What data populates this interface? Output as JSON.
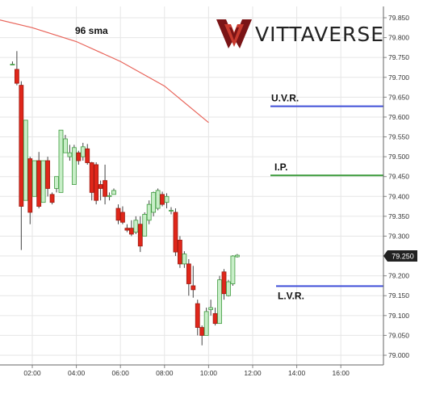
{
  "brand": {
    "name": "VITTAVERSE"
  },
  "colors": {
    "bull": "#c8eec8",
    "bullBorder": "#3f9b3f",
    "bear": "#e0261a",
    "bearBorder": "#9b1b12",
    "sma": "#e8645a",
    "uvr": "#3f4ed8",
    "ip": "#3a9a3a",
    "lvr": "#3f4ed8",
    "grid": "#e6e6e6",
    "logoDark": "#7a1416",
    "logoRed": "#c83a2e"
  },
  "chart_data": {
    "type": "candlestick",
    "ylim": [
      79.0,
      79.85
    ],
    "yticks": [
      "79.850",
      "79.800",
      "79.750",
      "79.700",
      "79.650",
      "79.600",
      "79.550",
      "79.500",
      "79.450",
      "79.400",
      "79.350",
      "79.300",
      "79.250",
      "79.200",
      "79.150",
      "79.100",
      "79.050",
      "79.000"
    ],
    "xticks": [
      "02:00",
      "04:00",
      "06:00",
      "08:00",
      "10:00",
      "12:00",
      "14:00",
      "16:00"
    ],
    "current_price": "79.250",
    "annotations": [
      {
        "label": "96 sma"
      },
      {
        "label": "U.V.R.",
        "y": 79.627
      },
      {
        "label": "I.P.",
        "y": 79.453
      },
      {
        "label": "L.V.R.",
        "y": 79.174
      }
    ],
    "sma": [
      [
        0.5,
        79.845
      ],
      [
        2,
        79.825
      ],
      [
        4,
        79.79
      ],
      [
        6,
        79.74
      ],
      [
        8,
        79.678
      ],
      [
        10,
        79.586
      ]
    ],
    "candles": [
      [
        1.1,
        79.732,
        79.74,
        79.731,
        79.733
      ],
      [
        1.3,
        79.72,
        79.766,
        79.68,
        79.685
      ],
      [
        1.5,
        79.68,
        79.69,
        79.265,
        79.375
      ],
      [
        1.7,
        79.39,
        79.592,
        79.39,
        79.592
      ],
      [
        1.9,
        79.495,
        79.5,
        79.33,
        79.36
      ],
      [
        2.1,
        79.4,
        79.49,
        79.4,
        79.49
      ],
      [
        2.3,
        79.49,
        79.512,
        79.37,
        79.375
      ],
      [
        2.5,
        79.385,
        79.49,
        79.385,
        79.49
      ],
      [
        2.7,
        79.49,
        79.5,
        79.4,
        79.42
      ],
      [
        2.9,
        79.405,
        79.41,
        79.38,
        79.385
      ],
      [
        3.1,
        79.42,
        79.45,
        79.41,
        79.45
      ],
      [
        3.3,
        79.41,
        79.567,
        79.41,
        79.567
      ],
      [
        3.5,
        79.51,
        79.555,
        79.51,
        79.545
      ],
      [
        3.7,
        79.5,
        79.53,
        79.49,
        79.51
      ],
      [
        3.9,
        79.43,
        79.53,
        79.43,
        79.523
      ],
      [
        4.1,
        79.51,
        79.515,
        79.48,
        79.49
      ],
      [
        4.3,
        79.5,
        79.535,
        79.49,
        79.525
      ],
      [
        4.5,
        79.52,
        79.532,
        79.48,
        79.485
      ],
      [
        4.7,
        79.485,
        79.487,
        79.39,
        79.41
      ],
      [
        4.9,
        79.48,
        79.486,
        79.38,
        79.39
      ],
      [
        5.1,
        79.43,
        79.44,
        79.39,
        79.42
      ],
      [
        5.3,
        79.44,
        79.48,
        79.38,
        79.4
      ],
      [
        5.5,
        79.4,
        79.41,
        79.39,
        79.402
      ],
      [
        5.7,
        79.405,
        79.42,
        79.405,
        79.415
      ],
      [
        5.9,
        79.37,
        79.38,
        79.33,
        79.34
      ],
      [
        6.1,
        79.36,
        79.375,
        79.33,
        79.335
      ],
      [
        6.3,
        79.32,
        79.33,
        79.31,
        79.315
      ],
      [
        6.5,
        79.32,
        79.34,
        79.3,
        79.305
      ],
      [
        6.7,
        79.31,
        79.35,
        79.305,
        79.34
      ],
      [
        6.9,
        79.33,
        79.35,
        79.26,
        79.275
      ],
      [
        7.1,
        79.3,
        79.36,
        79.3,
        79.355
      ],
      [
        7.3,
        79.34,
        79.39,
        79.33,
        79.38
      ],
      [
        7.5,
        79.36,
        79.412,
        79.35,
        79.41
      ],
      [
        7.7,
        79.37,
        79.42,
        79.365,
        79.415
      ],
      [
        7.9,
        79.405,
        79.412,
        79.375,
        79.38
      ],
      [
        8.1,
        79.385,
        79.408,
        79.37,
        79.4
      ],
      [
        8.3,
        79.365,
        79.373,
        79.355,
        79.365
      ],
      [
        8.5,
        79.36,
        79.37,
        79.25,
        79.26
      ],
      [
        8.7,
        79.29,
        79.3,
        79.22,
        79.23
      ],
      [
        8.9,
        79.23,
        79.262,
        79.22,
        79.255
      ],
      [
        9.1,
        79.23,
        79.242,
        79.15,
        79.18
      ],
      [
        9.3,
        79.175,
        79.225,
        79.145,
        79.165
      ],
      [
        9.5,
        79.13,
        79.14,
        79.05,
        79.07
      ],
      [
        9.7,
        79.07,
        79.075,
        79.025,
        79.05
      ],
      [
        9.9,
        79.05,
        79.12,
        79.05,
        79.11
      ],
      [
        10.1,
        79.115,
        79.14,
        79.1,
        79.12
      ],
      [
        10.3,
        79.105,
        79.12,
        79.075,
        79.08
      ],
      [
        10.5,
        79.08,
        79.2,
        79.08,
        79.19
      ],
      [
        10.7,
        79.21,
        79.217,
        79.14,
        79.155
      ],
      [
        10.9,
        79.15,
        79.19,
        79.148,
        79.185
      ],
      [
        11.1,
        79.18,
        79.252,
        79.175,
        79.25
      ],
      [
        11.3,
        79.248,
        79.255,
        79.246,
        79.252
      ]
    ]
  }
}
